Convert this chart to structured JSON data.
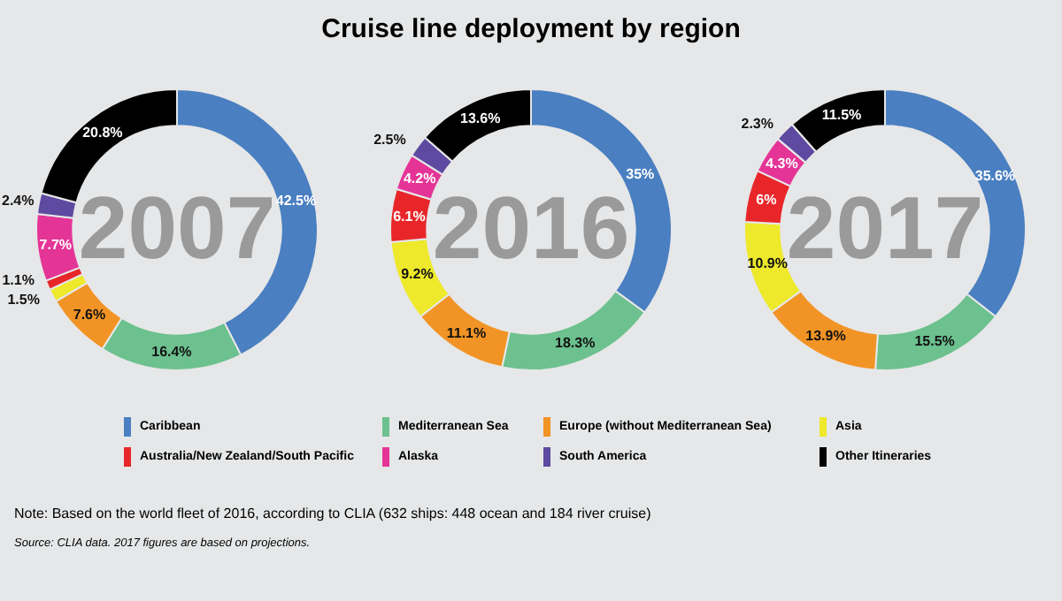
{
  "chart_data": [
    {
      "type": "donut",
      "subtitle": "2007",
      "legend": "bottom",
      "categories": [
        "Caribbean",
        "Mediterranean Sea",
        "Europe (without Mediterranean Sea)",
        "Asia",
        "Australia/New Zealand/South Pacific",
        "Alaska",
        "South America",
        "Other Itineraries"
      ],
      "values": [
        42.5,
        16.4,
        7.6,
        1.5,
        1.1,
        7.7,
        2.4,
        20.8
      ],
      "value_labels": [
        "42.5%",
        "16.4%",
        "7.6%",
        "1.5%",
        "1.1%",
        "7.7%",
        "2.4%",
        "20.8%"
      ],
      "colors": [
        "#4a7fc1",
        "#6cc18e",
        "#f29425",
        "#eee92b",
        "#e8262a",
        "#e43597",
        "#5e4aa0",
        "#000000"
      ]
    },
    {
      "type": "donut",
      "title": "Cruise line deployment by region",
      "subtitle": "2016",
      "categories": [
        null,
        null,
        null,
        null,
        null,
        null,
        null,
        null
      ],
      "values": [
        35,
        18.3,
        11.1,
        9.2,
        6.1,
        4.2,
        2.5,
        13.6
      ],
      "value_labels": [
        "35%",
        "18.3%",
        "11.1%",
        "9.2%",
        "6.1%",
        "4.2%",
        "2.5%",
        "13.6%"
      ],
      "colors": [
        "#4a7fc1",
        "#6cc18e",
        "#f29425",
        "#eee92b",
        "#e8262a",
        "#e43597",
        "#5e4aa0",
        "#000000"
      ]
    },
    {
      "type": "donut",
      "subtitle": "2017",
      "categories": [
        null,
        null,
        null,
        null,
        null,
        null,
        null,
        null
      ],
      "values": [
        35.6,
        15.5,
        13.9,
        10.9,
        6,
        4.3,
        2.3,
        11.5
      ],
      "value_labels": [
        "35.6%",
        "15.5%",
        "13.9%",
        "10.9%",
        "6%",
        "4.3%",
        "2.3%",
        "11.5%"
      ],
      "colors": [
        "#4a7fc1",
        "#6cc18e",
        "#f29425",
        "#eee92b",
        "#e8262a",
        "#e43597",
        "#5e4aa0",
        "#000000"
      ],
      "annotations": [
        "Note: Based on the world fleet of 2016, according to CLIA (632 ships: 448 ocean and 184 river cruise)",
        "Source: CLIA data. 2017 figures are based on projections."
      ]
    }
  ]
}
